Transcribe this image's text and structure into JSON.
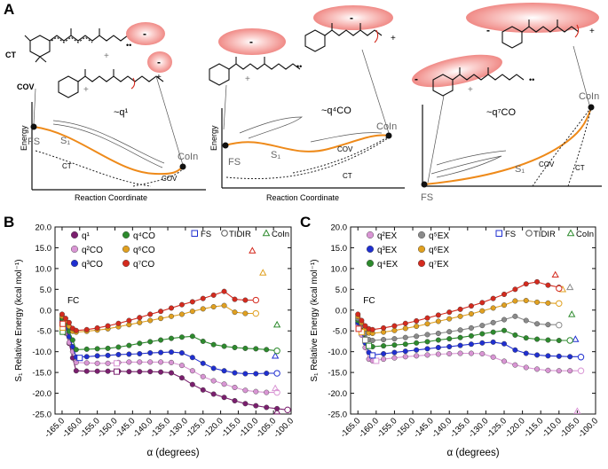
{
  "figure": {
    "panel_labels": [
      "A",
      "B",
      "C"
    ],
    "colors": {
      "orange": "#ee8a1a",
      "purple": "#7a1f6e",
      "lpink": "#d995d4",
      "blue": "#1f2fd0",
      "green": "#2d8a2d",
      "gray": "#8a8a8a",
      "red": "#d42a1e",
      "cloud": "#f08a86"
    }
  },
  "panel_a": {
    "energy_label": "Energy",
    "x_label": "Reaction Coordinate",
    "diagrams": [
      {
        "id": "q1",
        "q_label": "~q¹",
        "fs": "FS",
        "s1": "S₁",
        "ct": "CT",
        "cov": "COV",
        "coin": "CoIn",
        "molecule_labels": [
          "CT",
          "COV"
        ],
        "charges": [
          "-",
          "-"
        ]
      },
      {
        "id": "q4co",
        "q_label": "~q⁴CO",
        "fs": "FS",
        "s1": "S₁",
        "ct": "CT",
        "cov": "COV",
        "coin": "CoIn",
        "charges": [
          "-",
          "-"
        ]
      },
      {
        "id": "q7co",
        "q_label": "~q⁷CO",
        "fs": "FS",
        "s1": "S₁",
        "ct": "CT",
        "cov": "COV",
        "coin": "CoIn",
        "charges": [
          "-",
          "-"
        ]
      }
    ]
  },
  "chart_data": [
    {
      "panel": "B",
      "type": "line",
      "ylabel": "S₁ Relative Energy (kcal mol⁻¹)",
      "xlabel": "α (degrees)",
      "xlim": [
        -167,
        -100
      ],
      "ylim": [
        -25,
        20
      ],
      "xticks": [
        "-165.0",
        "-160.0",
        "-155.0",
        "-150.0",
        "-145.0",
        "-140.0",
        "-135.0",
        "-130.0",
        "-125.0",
        "-120.0",
        "-115.0",
        "-110.0",
        "-105.0",
        "-100.0"
      ],
      "yticks": [
        "20.0",
        "15.0",
        "10.0",
        "5.0",
        "0.0",
        "-5.0",
        "-10.0",
        "-15.0",
        "-20.0",
        "-25.0"
      ],
      "annotation": "FC",
      "marker_legend": [
        "FS",
        "TIDIR",
        "CoIn"
      ],
      "series": [
        {
          "name": "q¹",
          "color": "#7a1f6e",
          "x": [
            -165,
            -164,
            -163,
            -162,
            -161,
            -158,
            -155,
            -152,
            -149,
            -146,
            -143,
            -140,
            -137,
            -134,
            -131,
            -128,
            -125,
            -122,
            -119,
            -116,
            -113,
            -110,
            -107,
            -104,
            -101
          ],
          "y": [
            -3.6,
            -5.5,
            -8,
            -11.5,
            -14.6,
            -14.7,
            -14.7,
            -14.7,
            -14.7,
            -14.8,
            -14.8,
            -14.8,
            -14.9,
            -15.1,
            -16.3,
            -17.9,
            -19.2,
            -20.2,
            -21,
            -21.8,
            -22.5,
            -23,
            -23.4,
            -23.7,
            -24
          ],
          "fs": {
            "x": -149.5,
            "y": -14.8
          },
          "tidir": {
            "x": -101,
            "y": -24
          },
          "coin": {
            "x": -104,
            "y": -24.4
          }
        },
        {
          "name": "q²CO",
          "color": "#d995d4",
          "x": [
            -165,
            -164,
            -163,
            -162,
            -161,
            -158,
            -155,
            -152,
            -149,
            -146,
            -143,
            -140,
            -137,
            -134,
            -131,
            -128,
            -125,
            -122,
            -119,
            -116,
            -113,
            -110,
            -107,
            -104
          ],
          "y": [
            -3,
            -5,
            -7.8,
            -10,
            -12.6,
            -12.7,
            -12.8,
            -12.8,
            -12.6,
            -12.5,
            -12.5,
            -12.5,
            -12.5,
            -12.6,
            -13.3,
            -14.6,
            -16,
            -17,
            -17.8,
            -18.6,
            -19.3,
            -19.6,
            -19.8,
            -19.8
          ],
          "fs": {
            "x": -149.5,
            "y": -12.8
          },
          "tidir": {
            "x": -104,
            "y": -19.8
          },
          "coin": {
            "x": -104.5,
            "y": -18.8
          }
        },
        {
          "name": "q³CO",
          "color": "#1f2fd0",
          "x": [
            -165,
            -164,
            -163,
            -162,
            -161,
            -158,
            -155,
            -152,
            -149,
            -146,
            -143,
            -140,
            -137,
            -134,
            -131,
            -128,
            -125,
            -122,
            -119,
            -116,
            -113,
            -110,
            -107,
            -104
          ],
          "y": [
            -2.5,
            -4.2,
            -6.4,
            -8.8,
            -11.3,
            -11.2,
            -11,
            -10.9,
            -10.7,
            -10.6,
            -10.5,
            -10.3,
            -10.2,
            -10.1,
            -10.3,
            -11.4,
            -12.8,
            -14,
            -14.6,
            -15.1,
            -15.3,
            -15.3,
            -15.2,
            -15.2
          ],
          "fs": {
            "x": -160,
            "y": -11.5
          },
          "tidir": {
            "x": -104,
            "y": -15.2
          },
          "coin": {
            "x": -104.5,
            "y": -11
          }
        },
        {
          "name": "q⁴CO",
          "color": "#2d8a2d",
          "x": [
            -165,
            -164,
            -163,
            -162,
            -161,
            -158,
            -155,
            -152,
            -149,
            -146,
            -143,
            -140,
            -137,
            -134,
            -131,
            -128,
            -125,
            -122,
            -119,
            -116,
            -113,
            -110,
            -107,
            -104
          ],
          "y": [
            -2,
            -3.3,
            -5.1,
            -7.2,
            -9.5,
            -9.4,
            -9.3,
            -9.2,
            -8.9,
            -8.5,
            -8,
            -7.6,
            -7.2,
            -6.8,
            -6.5,
            -6.3,
            -7.5,
            -8.3,
            -8.7,
            -9,
            -9.2,
            -9.3,
            -9.5,
            -9.8
          ],
          "fs": {
            "x": -164.8,
            "y": -5.2
          },
          "tidir": {
            "x": -104,
            "y": -9.8
          },
          "coin": {
            "x": -104,
            "y": -3.5
          }
        },
        {
          "name": "q⁶CO",
          "color": "#e0a020",
          "x": [
            -165,
            -164,
            -163,
            -162,
            -161,
            -158,
            -155,
            -152,
            -149,
            -146,
            -143,
            -140,
            -137,
            -134,
            -131,
            -128,
            -125,
            -122,
            -119,
            -116,
            -113,
            -110
          ],
          "y": [
            -1.5,
            -2.6,
            -3.9,
            -5.1,
            -5.3,
            -5.1,
            -4.8,
            -4.5,
            -4,
            -3.5,
            -3,
            -2.5,
            -2,
            -1.5,
            -1,
            -0.3,
            0.3,
            0.8,
            1.1,
            -0.5,
            -0.8,
            -0.8
          ],
          "fs": {
            "x": -164.8,
            "y": -4.2
          },
          "tidir": {
            "x": -110,
            "y": -0.8
          },
          "coin": {
            "x": -108,
            "y": 9
          }
        },
        {
          "name": "q⁷CO",
          "color": "#d42a1e",
          "x": [
            -165,
            -164,
            -163,
            -162,
            -161,
            -158,
            -155,
            -152,
            -149,
            -146,
            -143,
            -140,
            -137,
            -134,
            -131,
            -128,
            -125,
            -122,
            -119,
            -116,
            -113,
            -110
          ],
          "y": [
            -1,
            -2,
            -3,
            -4.4,
            -4.9,
            -4.7,
            -4.3,
            -3.8,
            -3.2,
            -2.5,
            -1.8,
            -1,
            -0.3,
            0.5,
            1.3,
            2,
            2.8,
            3.6,
            4.5,
            2.6,
            2.4,
            2.4
          ],
          "fs": {
            "x": -164.8,
            "y": -3.3
          },
          "tidir": {
            "x": -110,
            "y": 2.4
          },
          "coin": {
            "x": -111,
            "y": 14.3
          }
        }
      ]
    },
    {
      "panel": "C",
      "type": "line",
      "ylabel": "S₁ Relative Energy (kcal mol⁻¹)",
      "xlabel": "α (degrees)",
      "xlim": [
        -167,
        -100
      ],
      "ylim": [
        -25,
        20
      ],
      "xticks": [
        "-165.0",
        "-160.0",
        "-155.0",
        "-150.0",
        "-145.0",
        "-140.0",
        "-135.0",
        "-130.0",
        "-125.0",
        "-120.0",
        "-115.0",
        "-110.0",
        "-105.0",
        "-100.0"
      ],
      "yticks": [
        "20.0",
        "15.0",
        "10.0",
        "5.0",
        "0.0",
        "-5.0",
        "-10.0",
        "-15.0",
        "-20.0",
        "-25.0"
      ],
      "annotation": "FC",
      "marker_legend": [
        "FS",
        "TIDIR",
        "CoIn"
      ],
      "series": [
        {
          "name": "q²EX",
          "color": "#d995d4",
          "x": [
            -165,
            -164,
            -163,
            -162,
            -161,
            -158,
            -155,
            -152,
            -149,
            -146,
            -143,
            -140,
            -137,
            -134,
            -131,
            -128,
            -125,
            -122,
            -119,
            -116,
            -113,
            -110,
            -107,
            -104
          ],
          "y": [
            -3.4,
            -6,
            -9,
            -11.8,
            -12.2,
            -11.8,
            -11.5,
            -11.2,
            -11,
            -10.8,
            -10.6,
            -10.5,
            -10.4,
            -10.4,
            -10.5,
            -11.3,
            -12.3,
            -13.2,
            -13.8,
            -14.2,
            -14.5,
            -14.6,
            -14.6,
            -14.6
          ],
          "fs": {
            "x": -160,
            "y": -12.2
          },
          "tidir": {
            "x": -104,
            "y": -14.6
          },
          "coin": {
            "x": -105,
            "y": -24.3
          }
        },
        {
          "name": "q³EX",
          "color": "#1f2fd0",
          "x": [
            -165,
            -164,
            -163,
            -162,
            -161,
            -158,
            -155,
            -152,
            -149,
            -146,
            -143,
            -140,
            -137,
            -134,
            -131,
            -128,
            -125,
            -122,
            -119,
            -116,
            -113,
            -110,
            -107,
            -104
          ],
          "y": [
            -3,
            -5.3,
            -7.9,
            -10.2,
            -10.8,
            -10.5,
            -10.2,
            -9.9,
            -9.6,
            -9.3,
            -9,
            -8.8,
            -8.5,
            -8.2,
            -7.9,
            -7.7,
            -8.1,
            -9.6,
            -10.4,
            -10.8,
            -11,
            -11.1,
            -11.2,
            -11.2
          ],
          "fs": {
            "x": -161,
            "y": -10.9
          },
          "tidir": {
            "x": -104,
            "y": -11.3
          },
          "coin": {
            "x": -105.5,
            "y": -7
          }
        },
        {
          "name": "q⁴EX",
          "color": "#2d8a2d",
          "x": [
            -165,
            -164,
            -163,
            -162,
            -161,
            -158,
            -155,
            -152,
            -149,
            -146,
            -143,
            -140,
            -137,
            -134,
            -131,
            -128,
            -125,
            -122,
            -119,
            -116,
            -113,
            -110,
            -107
          ],
          "y": [
            -2.5,
            -4.6,
            -6.9,
            -8.6,
            -8.8,
            -8.6,
            -8.4,
            -8.2,
            -7.9,
            -7.6,
            -7.2,
            -6.9,
            -6.6,
            -6.2,
            -5.7,
            -5.3,
            -4.9,
            -6,
            -6.7,
            -7,
            -7.2,
            -7.3,
            -7.3
          ],
          "fs": {
            "x": -162,
            "y": -8.6
          },
          "tidir": {
            "x": -107,
            "y": -7.3
          },
          "coin": {
            "x": -106.5,
            "y": -1
          }
        },
        {
          "name": "q⁵EX",
          "color": "#8a8a8a",
          "x": [
            -165,
            -164,
            -163,
            -162,
            -161,
            -158,
            -155,
            -152,
            -149,
            -146,
            -143,
            -140,
            -137,
            -134,
            -131,
            -128,
            -125,
            -122,
            -119,
            -116,
            -113,
            -110
          ],
          "y": [
            -2,
            -3.8,
            -5.6,
            -7.1,
            -7.3,
            -7.1,
            -6.9,
            -6.6,
            -6.3,
            -5.9,
            -5.6,
            -5.2,
            -4.8,
            -4.3,
            -3.7,
            -3,
            -2.3,
            -1.5,
            -2.5,
            -3.3,
            -3.5,
            -3.5
          ],
          "fs": {
            "x": -163,
            "y": -7.2
          },
          "tidir": {
            "x": -110,
            "y": -3.6
          },
          "coin": {
            "x": -107,
            "y": 5.5
          }
        },
        {
          "name": "q⁶EX",
          "color": "#e0a020",
          "x": [
            -165,
            -164,
            -163,
            -162,
            -161,
            -158,
            -155,
            -152,
            -149,
            -146,
            -143,
            -140,
            -137,
            -134,
            -131,
            -128,
            -125,
            -122,
            -119,
            -116,
            -113,
            -110
          ],
          "y": [
            -1.5,
            -3,
            -4.5,
            -5.5,
            -5.6,
            -5.3,
            -4.9,
            -4.4,
            -3.9,
            -3.3,
            -2.7,
            -2.1,
            -1.5,
            -0.9,
            -0.2,
            0.5,
            1.2,
            2.2,
            2.3,
            1.9,
            1.7,
            1.6
          ],
          "fs": {
            "x": -164,
            "y": -5.3
          },
          "tidir": {
            "x": -110,
            "y": 1.6
          },
          "coin": {
            "x": -109,
            "y": 5
          }
        },
        {
          "name": "q⁷EX",
          "color": "#d42a1e",
          "x": [
            -165,
            -164,
            -163,
            -162,
            -161,
            -158,
            -155,
            -152,
            -149,
            -146,
            -143,
            -140,
            -137,
            -134,
            -131,
            -128,
            -125,
            -122,
            -119,
            -116,
            -113,
            -110
          ],
          "y": [
            -1,
            -2.5,
            -3.8,
            -4.5,
            -4.7,
            -4.3,
            -3.8,
            -3.2,
            -2.6,
            -1.9,
            -1.2,
            -0.5,
            0.2,
            1,
            1.8,
            2.8,
            3.8,
            5,
            6.3,
            6.8,
            6,
            5.5
          ],
          "fs": {
            "x": -164.8,
            "y": -4.5
          },
          "tidir": {
            "x": -110,
            "y": 5.2
          },
          "coin": {
            "x": -111,
            "y": 8.5
          }
        }
      ]
    }
  ]
}
